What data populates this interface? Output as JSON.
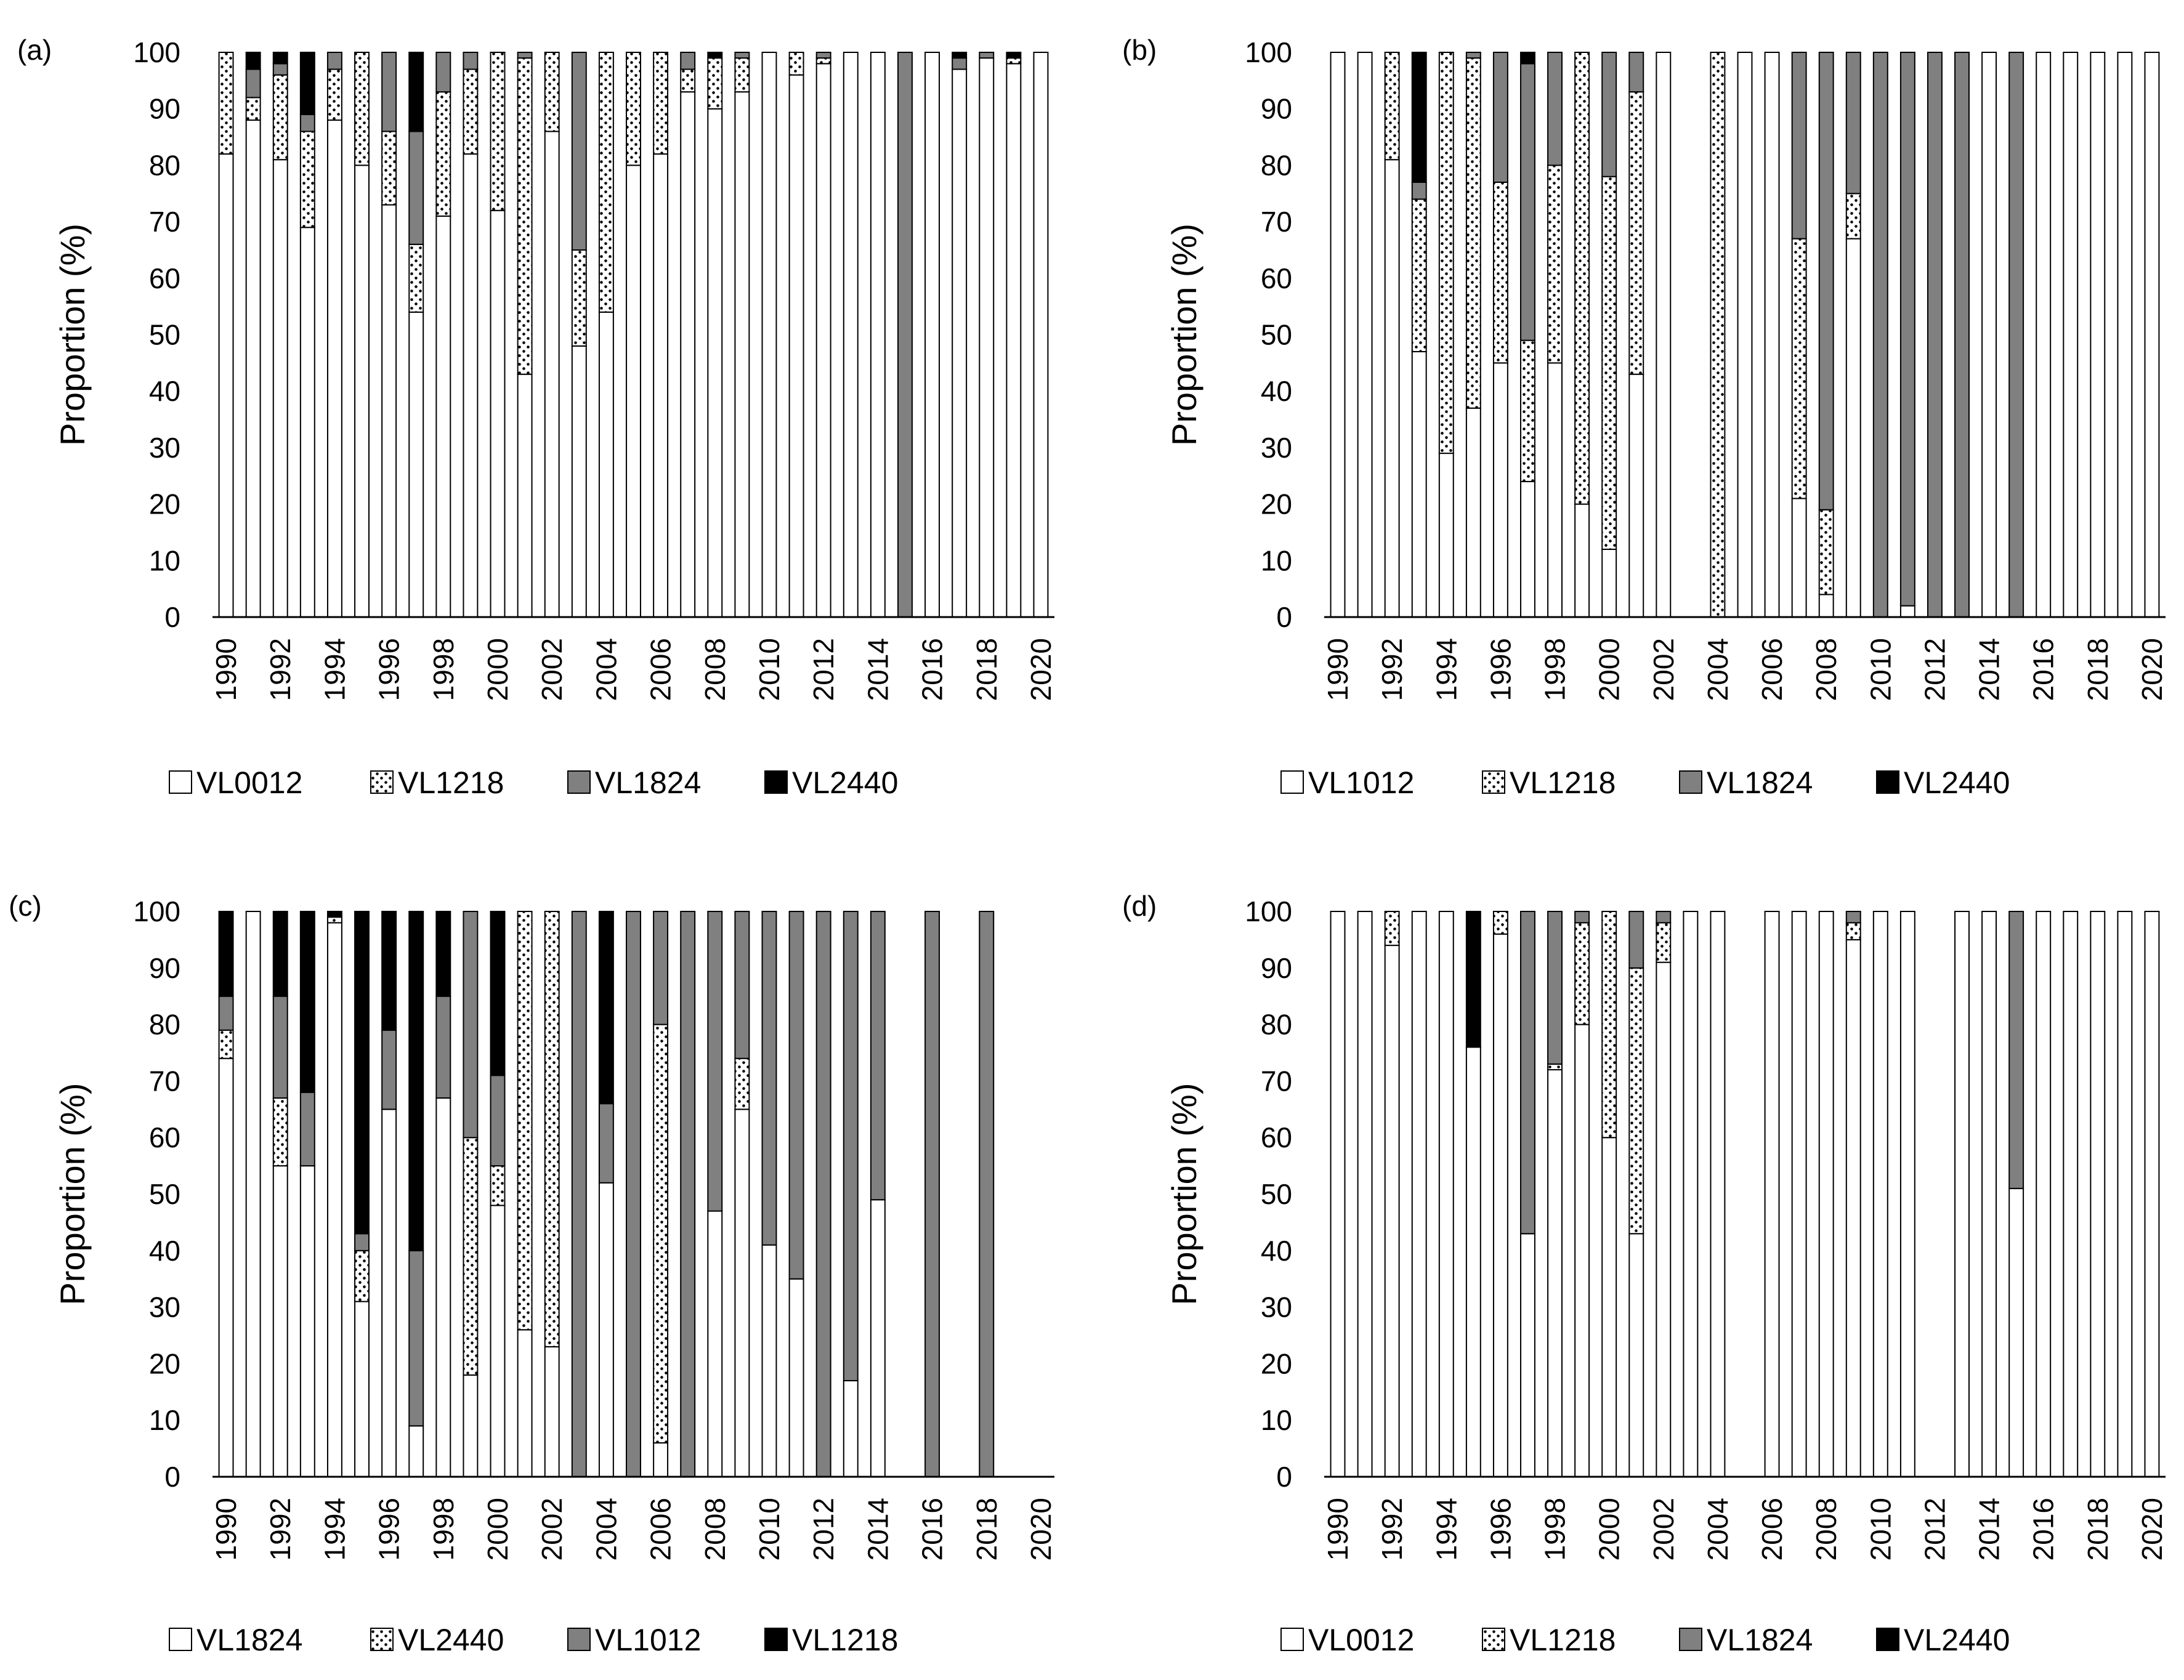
{
  "figure": {
    "y_axis_title": "Proportion (%)",
    "years": [
      1990,
      1991,
      1992,
      1993,
      1994,
      1995,
      1996,
      1997,
      1998,
      1999,
      2000,
      2001,
      2002,
      2003,
      2004,
      2005,
      2006,
      2007,
      2008,
      2009,
      2010,
      2011,
      2012,
      2013,
      2014,
      2015,
      2016,
      2017,
      2018,
      2019,
      2020
    ],
    "x_tick_labels": [
      "1990",
      "1992",
      "1994",
      "1996",
      "1998",
      "2000",
      "2002",
      "2004",
      "2006",
      "2008",
      "2010",
      "2012",
      "2014",
      "2016",
      "2018",
      "2020"
    ],
    "y_tick_labels": [
      "0",
      "10",
      "20",
      "30",
      "40",
      "50",
      "60",
      "70",
      "80",
      "90",
      "100"
    ]
  },
  "chart_data": [
    {
      "type": "bar",
      "stacked": true,
      "panel_label": "(a)",
      "title": "",
      "xlabel": "",
      "ylabel": "Proportion (%)",
      "ylim": [
        0,
        100
      ],
      "legend_position": "bottom",
      "categories": [
        1990,
        1991,
        1992,
        1993,
        1994,
        1995,
        1996,
        1997,
        1998,
        1999,
        2000,
        2001,
        2002,
        2003,
        2004,
        2005,
        2006,
        2007,
        2008,
        2009,
        2010,
        2011,
        2012,
        2013,
        2014,
        2015,
        2016,
        2017,
        2018,
        2019,
        2020
      ],
      "series": [
        {
          "name": "VL0012",
          "pattern": "white",
          "values": [
            82,
            88,
            81,
            69,
            88,
            80,
            73,
            54,
            71,
            82,
            72,
            43,
            86,
            48,
            54,
            80,
            82,
            93,
            90,
            93,
            100,
            96,
            98,
            100,
            100,
            0,
            100,
            97,
            99,
            98,
            100
          ]
        },
        {
          "name": "VL1218",
          "pattern": "dotted",
          "values": [
            18,
            4,
            15,
            17,
            9,
            20,
            13,
            12,
            22,
            15,
            28,
            56,
            14,
            17,
            46,
            20,
            18,
            4,
            9,
            6,
            0,
            4,
            1,
            0,
            0,
            0,
            0,
            0,
            0,
            1,
            0
          ]
        },
        {
          "name": "VL1824",
          "pattern": "gray",
          "values": [
            0,
            5,
            2,
            3,
            3,
            0,
            14,
            20,
            7,
            3,
            0,
            1,
            0,
            35,
            0,
            0,
            0,
            3,
            0,
            1,
            0,
            0,
            1,
            0,
            0,
            100,
            0,
            2,
            1,
            0,
            0
          ]
        },
        {
          "name": "VL2440",
          "pattern": "black",
          "values": [
            0,
            3,
            2,
            11,
            0,
            0,
            0,
            14,
            0,
            0,
            0,
            0,
            0,
            0,
            0,
            0,
            0,
            0,
            1,
            0,
            0,
            0,
            0,
            0,
            0,
            0,
            0,
            1,
            0,
            1,
            0
          ]
        }
      ]
    },
    {
      "type": "bar",
      "stacked": true,
      "panel_label": "(b)",
      "title": "",
      "xlabel": "",
      "ylabel": "Proportion (%)",
      "ylim": [
        0,
        100
      ],
      "legend_position": "bottom",
      "categories": [
        1990,
        1991,
        1992,
        1993,
        1994,
        1995,
        1996,
        1997,
        1998,
        1999,
        2000,
        2001,
        2002,
        2003,
        2004,
        2005,
        2006,
        2007,
        2008,
        2009,
        2010,
        2011,
        2012,
        2013,
        2014,
        2015,
        2016,
        2017,
        2018,
        2019,
        2020
      ],
      "series": [
        {
          "name": "VL1012",
          "pattern": "white",
          "values": [
            100,
            100,
            81,
            47,
            29,
            37,
            45,
            24,
            45,
            20,
            12,
            43,
            100,
            0,
            0,
            100,
            100,
            21,
            4,
            67,
            0,
            2,
            0,
            0,
            100,
            0,
            100,
            100,
            100,
            100,
            100
          ]
        },
        {
          "name": "VL1218",
          "pattern": "dotted",
          "values": [
            0,
            0,
            19,
            27,
            71,
            62,
            32,
            25,
            35,
            80,
            66,
            50,
            0,
            0,
            100,
            0,
            0,
            46,
            15,
            8,
            0,
            0,
            0,
            0,
            0,
            0,
            0,
            0,
            0,
            0,
            0
          ]
        },
        {
          "name": "VL1824",
          "pattern": "gray",
          "values": [
            0,
            0,
            0,
            3,
            0,
            1,
            23,
            49,
            20,
            0,
            22,
            7,
            0,
            0,
            0,
            0,
            0,
            33,
            81,
            25,
            100,
            98,
            100,
            100,
            0,
            100,
            0,
            0,
            0,
            0,
            0
          ]
        },
        {
          "name": "VL2440",
          "pattern": "black",
          "values": [
            0,
            0,
            0,
            23,
            0,
            0,
            0,
            2,
            0,
            0,
            0,
            0,
            0,
            0,
            0,
            0,
            0,
            0,
            0,
            0,
            0,
            0,
            0,
            0,
            0,
            0,
            0,
            0,
            0,
            0,
            0
          ]
        }
      ]
    },
    {
      "type": "bar",
      "stacked": true,
      "panel_label": "(c)",
      "title": "",
      "xlabel": "",
      "ylabel": "Proportion (%)",
      "ylim": [
        0,
        100
      ],
      "legend_position": "bottom",
      "categories": [
        1990,
        1991,
        1992,
        1993,
        1994,
        1995,
        1996,
        1997,
        1998,
        1999,
        2000,
        2001,
        2002,
        2003,
        2004,
        2005,
        2006,
        2007,
        2008,
        2009,
        2010,
        2011,
        2012,
        2013,
        2014,
        2015,
        2016,
        2017,
        2018,
        2019,
        2020
      ],
      "series": [
        {
          "name": "VL1824",
          "pattern": "white",
          "values": [
            74,
            100,
            55,
            55,
            98,
            31,
            65,
            9,
            67,
            18,
            48,
            26,
            23,
            0,
            52,
            0,
            6,
            0,
            47,
            65,
            41,
            35,
            0,
            17,
            49,
            0,
            0,
            0,
            0,
            0,
            0
          ]
        },
        {
          "name": "VL2440",
          "pattern": "dotted",
          "values": [
            5,
            0,
            12,
            0,
            1,
            9,
            0,
            0,
            0,
            42,
            7,
            74,
            77,
            0,
            0,
            0,
            74,
            0,
            0,
            9,
            0,
            0,
            0,
            0,
            0,
            0,
            0,
            0,
            0,
            0,
            0
          ]
        },
        {
          "name": "VL1012",
          "pattern": "gray",
          "values": [
            6,
            0,
            18,
            13,
            0,
            3,
            14,
            31,
            18,
            40,
            16,
            0,
            0,
            100,
            14,
            100,
            20,
            100,
            53,
            26,
            59,
            65,
            100,
            83,
            51,
            0,
            100,
            0,
            100,
            0,
            0
          ]
        },
        {
          "name": "VL1218",
          "pattern": "black",
          "values": [
            15,
            0,
            15,
            32,
            1,
            57,
            21,
            60,
            15,
            0,
            29,
            0,
            0,
            0,
            34,
            0,
            0,
            0,
            0,
            0,
            0,
            0,
            0,
            0,
            0,
            0,
            0,
            0,
            0,
            0,
            0
          ]
        }
      ]
    },
    {
      "type": "bar",
      "stacked": true,
      "panel_label": "(d)",
      "title": "",
      "xlabel": "",
      "ylabel": "Proportion (%)",
      "ylim": [
        0,
        100
      ],
      "legend_position": "bottom",
      "categories": [
        1990,
        1991,
        1992,
        1993,
        1994,
        1995,
        1996,
        1997,
        1998,
        1999,
        2000,
        2001,
        2002,
        2003,
        2004,
        2005,
        2006,
        2007,
        2008,
        2009,
        2010,
        2011,
        2012,
        2013,
        2014,
        2015,
        2016,
        2017,
        2018,
        2019,
        2020
      ],
      "series": [
        {
          "name": "VL0012",
          "pattern": "white",
          "values": [
            100,
            100,
            94,
            100,
            100,
            76,
            96,
            43,
            72,
            80,
            60,
            43,
            91,
            100,
            100,
            0,
            100,
            100,
            100,
            95,
            100,
            100,
            0,
            100,
            100,
            51,
            100,
            100,
            100,
            100,
            100
          ]
        },
        {
          "name": "VL1218",
          "pattern": "dotted",
          "values": [
            0,
            0,
            6,
            0,
            0,
            0,
            4,
            0,
            1,
            18,
            40,
            47,
            7,
            0,
            0,
            0,
            0,
            0,
            0,
            3,
            0,
            0,
            0,
            0,
            0,
            0,
            0,
            0,
            0,
            0,
            0
          ]
        },
        {
          "name": "VL1824",
          "pattern": "gray",
          "values": [
            0,
            0,
            0,
            0,
            0,
            0,
            0,
            57,
            27,
            2,
            0,
            10,
            2,
            0,
            0,
            0,
            0,
            0,
            0,
            2,
            0,
            0,
            0,
            0,
            0,
            49,
            0,
            0,
            0,
            0,
            0
          ]
        },
        {
          "name": "VL2440",
          "pattern": "black",
          "values": [
            0,
            0,
            0,
            0,
            0,
            24,
            0,
            0,
            0,
            0,
            0,
            0,
            0,
            0,
            0,
            0,
            0,
            0,
            0,
            0,
            0,
            0,
            0,
            0,
            0,
            0,
            0,
            0,
            0,
            0,
            0
          ]
        }
      ]
    }
  ]
}
